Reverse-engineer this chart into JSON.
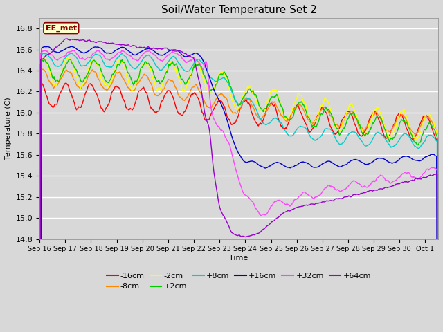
{
  "title": "Soil/Water Temperature Set 2",
  "ylabel": "Temperature (C)",
  "xlabel": "Time",
  "ylim": [
    14.8,
    16.9
  ],
  "annotation": "EE_met",
  "bg_color": "#d8d8d8",
  "series": [
    {
      "label": "-16cm",
      "color": "#ff0000"
    },
    {
      "label": "-8cm",
      "color": "#ff8800"
    },
    {
      "label": "-2cm",
      "color": "#ffff00"
    },
    {
      "label": "+2cm",
      "color": "#00cc00"
    },
    {
      "label": "+8cm",
      "color": "#00cccc"
    },
    {
      "label": "+16cm",
      "color": "#0000cc"
    },
    {
      "label": "+32cm",
      "color": "#ff44ff"
    },
    {
      "label": "+64cm",
      "color": "#9900cc"
    }
  ],
  "xtick_labels": [
    "Sep 16",
    "Sep 17",
    "Sep 18",
    "Sep 19",
    "Sep 20",
    "Sep 21",
    "Sep 22",
    "Sep 23",
    "Sep 24",
    "Sep 25",
    "Sep 26",
    "Sep 27",
    "Sep 28",
    "Sep 29",
    "Sep 30",
    "Oct 1"
  ],
  "ytick_values": [
    14.8,
    15.0,
    15.2,
    15.4,
    15.6,
    15.8,
    16.0,
    16.2,
    16.4,
    16.6,
    16.8
  ],
  "ytick_labels": [
    "14.8",
    "15.0",
    "15.2",
    "15.4",
    "15.6",
    "15.8",
    "16.0",
    "16.2",
    "16.4",
    "16.6",
    "16.8"
  ]
}
